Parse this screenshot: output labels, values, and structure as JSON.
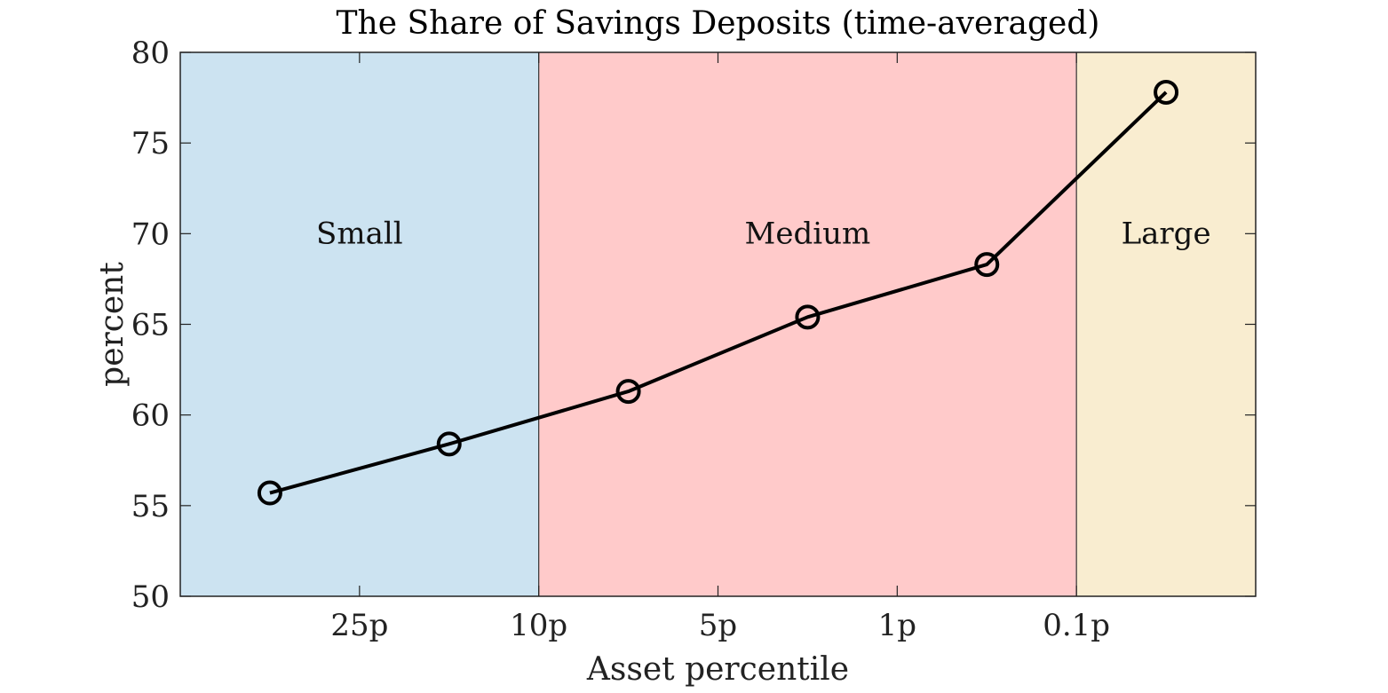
{
  "chart_data": {
    "type": "line",
    "title": "The Share of Savings Deposits (time-averaged)",
    "xlabel": "Asset percentile",
    "ylabel": "percent",
    "ylim": [
      50,
      80
    ],
    "yticks": [
      50,
      55,
      60,
      65,
      70,
      75,
      80
    ],
    "xticks": [
      {
        "label": "25p",
        "index": 1
      },
      {
        "label": "10p",
        "index": 2
      },
      {
        "label": "5p",
        "index": 3
      },
      {
        "label": "1p",
        "index": 4
      },
      {
        "label": "0.1p",
        "index": 5
      }
    ],
    "xlim_index": [
      0,
      6
    ],
    "regions": [
      {
        "label": "Small",
        "from_index": 0,
        "to_index": 2,
        "color": "#cce3f1"
      },
      {
        "label": "Medium",
        "from_index": 2,
        "to_index": 5,
        "color": "#ffcaca"
      },
      {
        "label": "Large",
        "from_index": 5,
        "to_index": 6,
        "color": "#f9edd0"
      }
    ],
    "region_label_y": 70,
    "series": [
      {
        "marker": "open-circle",
        "color": "#000000",
        "points": [
          {
            "x_index": 0.5,
            "y": 55.7
          },
          {
            "x_index": 1.5,
            "y": 58.4
          },
          {
            "x_index": 2.5,
            "y": 61.3
          },
          {
            "x_index": 3.5,
            "y": 65.4
          },
          {
            "x_index": 4.5,
            "y": 68.3
          },
          {
            "x_index": 5.5,
            "y": 77.8
          }
        ]
      }
    ],
    "grid": false,
    "legend": "none"
  }
}
